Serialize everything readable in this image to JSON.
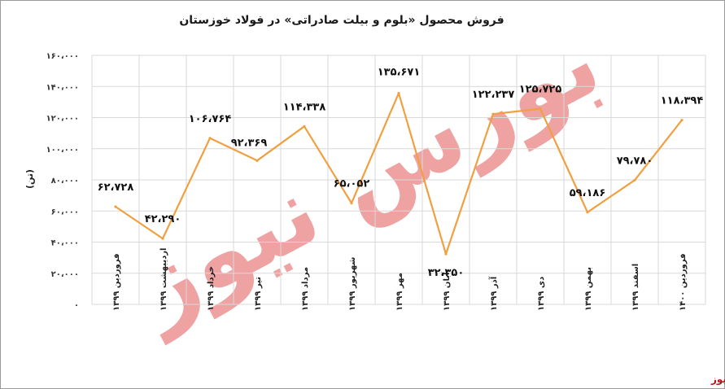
{
  "title": "فروش محصول «بلوم و بیلت صادراتی» در فولاد خوزستان",
  "source": "بورس نیوز",
  "watermark": "بورس نیوز",
  "colors": {
    "line": "#f0a040",
    "grid": "#d9d9d9",
    "source": "#c0101a",
    "watermark": "#e46a6a"
  },
  "chart_data": {
    "type": "line",
    "title": "فروش محصول «بلوم و بیلت صادراتی» در فولاد خوزستان",
    "ylabel": "(تن)",
    "xlabel": "",
    "ylim": [
      0,
      160000
    ],
    "y_ticks": [
      "۰",
      "۲۰،۰۰۰",
      "۴۰،۰۰۰",
      "۶۰،۰۰۰",
      "۸۰،۰۰۰",
      "۱۰۰،۰۰۰",
      "۱۲۰،۰۰۰",
      "۱۴۰،۰۰۰",
      "۱۶۰،۰۰۰"
    ],
    "grid": true,
    "legend": "none",
    "categories": [
      "فروردین ۱۳۹۹",
      "اردیبهشت ۱۳۹۹",
      "خرداد ۱۳۹۹",
      "تیر ۱۳۹۹",
      "مرداد ۱۳۹۹",
      "شهریور ۱۳۹۹",
      "مهر ۱۳۹۹",
      "آبان ۱۳۹۹",
      "آذر ۱۳۹۹",
      "دی ۱۳۹۹",
      "بهمن ۱۳۹۹",
      "اسفند ۱۳۹۹",
      "فروردین ۱۴۰۰"
    ],
    "values": [
      62728,
      42290,
      106764,
      92369,
      114338,
      65052,
      135671,
      32350,
      122237,
      125725,
      59186,
      79780,
      118394
    ],
    "data_labels": [
      "۶۲،۷۲۸",
      "۴۲،۲۹۰",
      "۱۰۶،۷۶۴",
      "۹۲،۳۶۹",
      "۱۱۴،۳۳۸",
      "۶۵،۰۵۲",
      "۱۳۵،۶۷۱",
      "۳۲،۳۵۰",
      "۱۲۲،۲۳۷",
      "۱۲۵،۷۲۵",
      "۵۹،۱۸۶",
      "۷۹،۷۸۰",
      "۱۱۸،۳۹۴"
    ]
  }
}
